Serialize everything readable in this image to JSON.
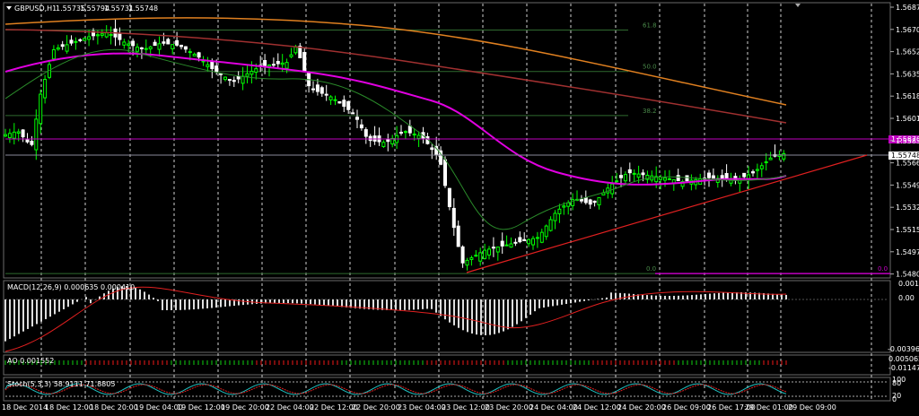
{
  "window": {
    "symbol_label": "GBPUSD,H1",
    "ohlc": [
      "1.55735",
      "1.55794",
      "1.55731",
      "1.55748"
    ]
  },
  "price_axis": {
    "ticks": [
      "1.56870",
      "1.56700",
      "1.56525",
      "1.56355",
      "1.56180",
      "1.56010",
      "1.55835",
      "1.55665",
      "1.55490",
      "1.55320",
      "1.55150",
      "1.54975",
      "1.54805"
    ],
    "range": [
      1.548,
      1.5689
    ],
    "current_price": "1.55748",
    "level_tag": "1.55870"
  },
  "fibonacci": {
    "levels": [
      {
        "label": "61.8",
        "price": 1.567
      },
      {
        "label": "50.0",
        "price": 1.5638
      },
      {
        "label": "38.2",
        "price": 1.5604
      },
      {
        "label": "0.0",
        "price": 1.5482
      }
    ],
    "end_label": "0.0"
  },
  "time_axis": {
    "labels": [
      "18 Dec 2014",
      "18 Dec 12:00",
      "18 Dec 20:00",
      "19 Dec 04:00",
      "19 Dec 12:00",
      "19 Dec 20:00",
      "22 Dec 04:00",
      "22 Dec 12:00",
      "22 Dec 20:00",
      "23 Dec 04:00",
      "23 Dec 12:00",
      "23 Dec 20:00",
      "24 Dec 04:00",
      "24 Dec 12:00",
      "24 Dec 20:00",
      "26 Dec 09:00",
      "26 Dec 17:00",
      "29 Dec 01:00",
      "29 Dec 09:00"
    ]
  },
  "macd": {
    "label": "MACD(12,26,9) 0.000635 0.000410",
    "ticks": [
      "0.00127",
      "0.00",
      "-0.003969"
    ]
  },
  "ao": {
    "label": "AO 0.001552",
    "ticks": [
      "0.005062",
      "-0.01147"
    ]
  },
  "stoch": {
    "label": "Stoch(5,3,3) 58.9111 71.8805",
    "ticks": [
      "100",
      "80",
      "20",
      "0"
    ]
  },
  "colors": {
    "bull": "#00ff00",
    "bear": "#ffffff",
    "ma_magenta": "#e000e0",
    "ma_orange": "#e08020",
    "ma_brown": "#a03030",
    "trendline": "#e02020",
    "grid": "#ffffff"
  }
}
